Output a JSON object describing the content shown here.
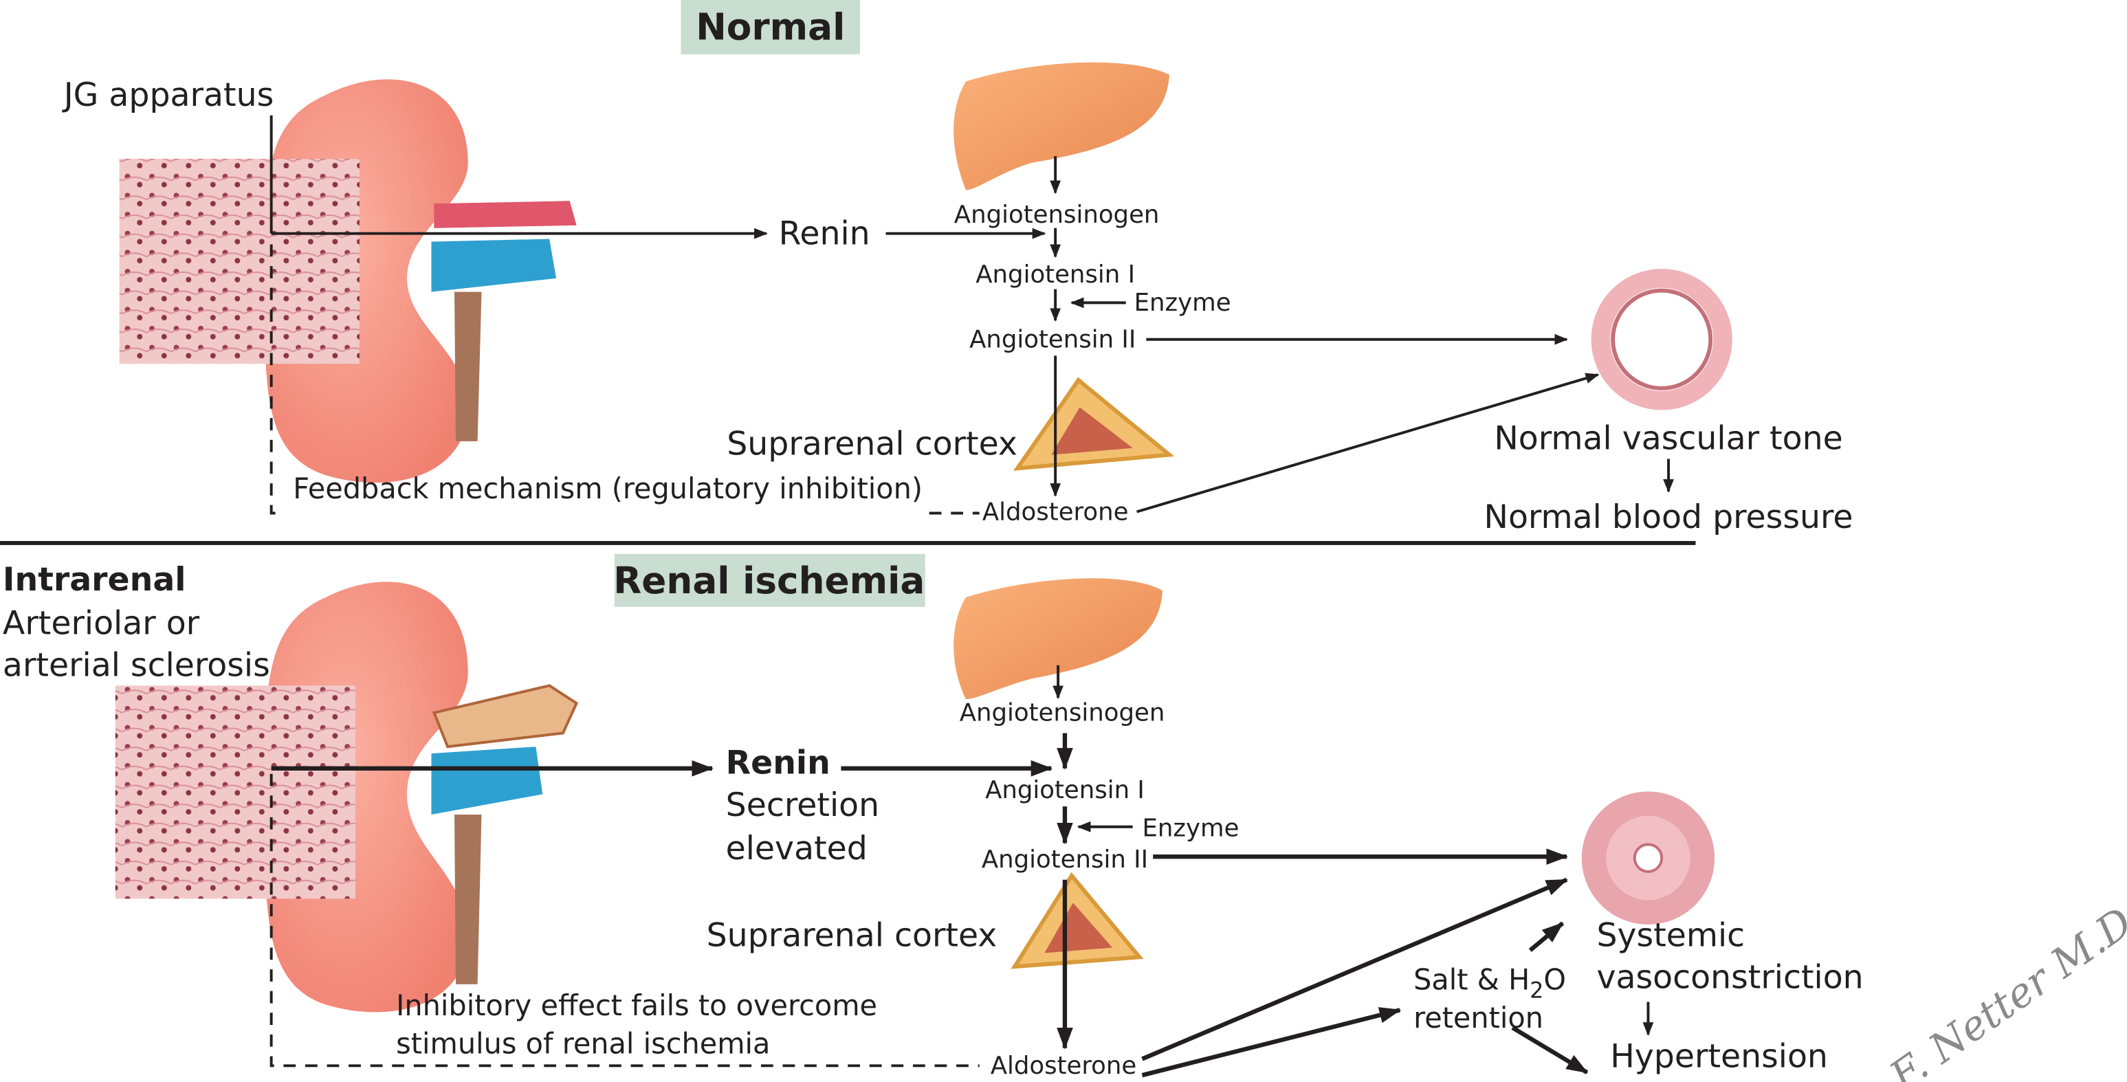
{
  "normal": {
    "title": "Normal",
    "jg_apparatus": "JG apparatus",
    "renin": "Renin",
    "angiotensinogen": "Angiotensinogen",
    "angiotensin_1": "Angiotensin I",
    "enzyme": "Enzyme",
    "angiotensin_2": "Angiotensin II",
    "suprarenal_cortex": "Suprarenal cortex",
    "feedback": "Feedback mechanism (regulatory inhibition)",
    "aldosterone": "Aldosterone",
    "vascular_tone": "Normal vascular tone",
    "blood_pressure": "Normal blood pressure"
  },
  "ischemia": {
    "title": "Renal ischemia",
    "intrarenal": "Intrarenal",
    "sclerosis_line1": "Arteriolar or",
    "sclerosis_line2": "arterial sclerosis",
    "renin": "Renin",
    "secretion_line1": "Secretion",
    "secretion_line2": "elevated",
    "angiotensinogen": "Angiotensinogen",
    "angiotensin_1": "Angiotensin I",
    "enzyme": "Enzyme",
    "angiotensin_2": "Angiotensin II",
    "suprarenal_cortex": "Suprarenal cortex",
    "inhibitory_line1": "Inhibitory effect fails to overcome",
    "inhibitory_line2": "stimulus of renal ischemia",
    "aldosterone": "Aldosterone",
    "salt_prefix": "Salt & H",
    "salt_sub": "2",
    "salt_suffix": "O",
    "retention": "retention",
    "systemic": "Systemic",
    "vasoconstriction": "vasoconstriction",
    "hypertension": "Hypertension"
  },
  "signature": "F. Netter M.D."
}
